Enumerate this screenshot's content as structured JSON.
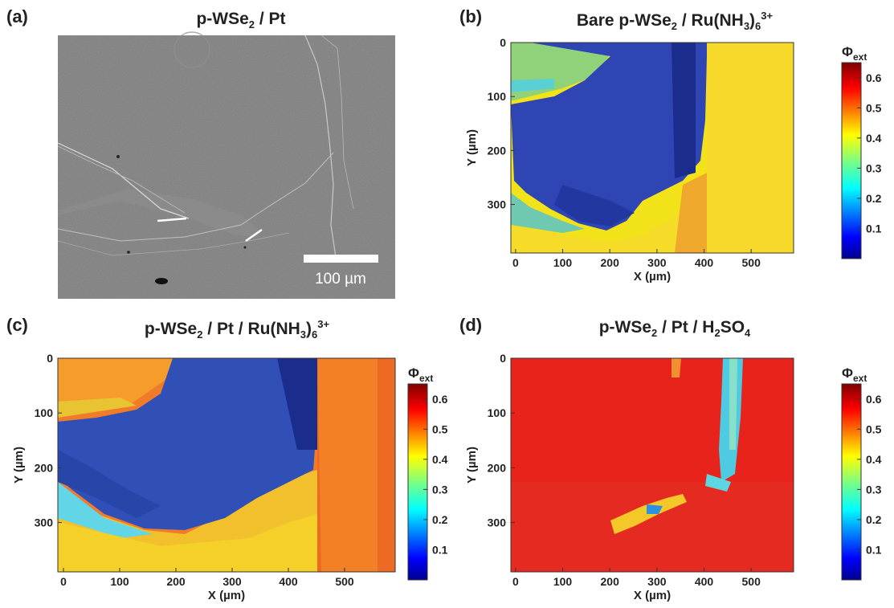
{
  "panels": [
    {
      "letter": "(a)",
      "title_main": "p-WSe",
      "title_sub": "2",
      "title_rest": " / Pt",
      "title_sub2": "",
      "title_rest2": "",
      "title_sup": ""
    },
    {
      "letter": "(b)",
      "title_main": "Bare p-WSe",
      "title_sub": "2",
      "title_rest": " / Ru(NH",
      "title_sub2": "3",
      "title_rest2": ")",
      "title_sub3": "6",
      "title_sup": "3+"
    },
    {
      "letter": "(c)",
      "title_main": "p-WSe",
      "title_sub": "2",
      "title_rest": " / Pt / Ru(NH",
      "title_sub2": "3",
      "title_rest2": ")",
      "title_sub3": "6",
      "title_sup": "3+"
    },
    {
      "letter": "(d)",
      "title_main": "p-WSe",
      "title_sub": "2",
      "title_rest": " / Pt / H",
      "title_sub2": "2",
      "title_rest2": "SO",
      "title_sub3": "4",
      "title_sup": ""
    }
  ],
  "sem": {
    "scale_bar_label": "100 µm"
  },
  "colorbar_title": {
    "main": "Φ",
    "sub": "ext"
  },
  "chart_data": [
    {
      "type": "heatmap",
      "panel": "b",
      "title": "Bare p-WSe2 / Ru(NH3)6 3+",
      "xlabel": "X (µm)",
      "ylabel": "Y (µm)",
      "xlim": [
        -10,
        590
      ],
      "ylim": [
        0,
        390
      ],
      "y_inverted": true,
      "xticks": [
        0,
        100,
        200,
        300,
        400,
        500
      ],
      "yticks": [
        0,
        100,
        200,
        300
      ],
      "colorbar": {
        "label": "Φext",
        "range": [
          0,
          0.65
        ],
        "ticks": [
          0.1,
          0.2,
          0.3,
          0.4,
          0.5,
          0.6
        ],
        "colormap": "jet"
      },
      "regions": {
        "background": 0.42,
        "mid_band": 0.33,
        "flake": 0.04,
        "left_edge": 0.27,
        "bottom": 0.4
      }
    },
    {
      "type": "heatmap",
      "panel": "c",
      "title": "p-WSe2 / Pt / Ru(NH3)6 3+",
      "xlabel": "X (µm)",
      "ylabel": "Y (µm)",
      "xlim": [
        -10,
        590
      ],
      "ylim": [
        0,
        390
      ],
      "y_inverted": true,
      "xticks": [
        0,
        100,
        200,
        300,
        400,
        500
      ],
      "yticks": [
        0,
        100,
        200,
        300
      ],
      "colorbar": {
        "label": "Φext",
        "range": [
          0,
          0.65
        ],
        "ticks": [
          0.1,
          0.2,
          0.3,
          0.4,
          0.5,
          0.6
        ],
        "colormap": "jet"
      },
      "regions": {
        "background": 0.5,
        "top_left": 0.47,
        "flake": 0.05,
        "left_edge": 0.22,
        "bottom": 0.44
      }
    },
    {
      "type": "heatmap",
      "panel": "d",
      "title": "p-WSe2 / Pt / H2SO4",
      "xlabel": "X (µm)",
      "ylabel": "Y (µm)",
      "xlim": [
        -10,
        590
      ],
      "ylim": [
        0,
        390
      ],
      "y_inverted": true,
      "xticks": [
        0,
        100,
        200,
        300,
        400,
        500
      ],
      "yticks": [
        0,
        100,
        200,
        300
      ],
      "colorbar": {
        "label": "Φext",
        "range": [
          0,
          0.65
        ],
        "ticks": [
          0.1,
          0.2,
          0.3,
          0.4,
          0.5,
          0.6
        ],
        "colormap": "jet"
      },
      "regions": {
        "background": 0.55,
        "edge_stripe": 0.22,
        "crack": 0.38
      }
    }
  ]
}
